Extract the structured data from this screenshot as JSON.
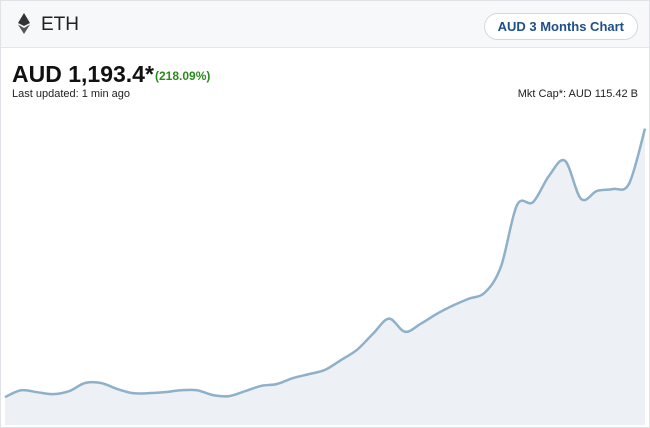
{
  "header": {
    "symbol": "ETH",
    "button": "AUD 3 Months Chart"
  },
  "price": {
    "value": "AUD 1,193.4*",
    "change": "(218.09%)",
    "updated": "Last updated: 1 min ago",
    "market_cap": "Mkt Cap*: AUD 115.42 B"
  },
  "chart_data": {
    "type": "area",
    "color": "#8eb1c9",
    "fill": "#edf1f5",
    "ylim": [
      290,
      1265
    ],
    "values": [
      375,
      396,
      390,
      384,
      393,
      418,
      418,
      400,
      387,
      387,
      390,
      396,
      396,
      381,
      378,
      393,
      409,
      415,
      433,
      445,
      458,
      488,
      519,
      568,
      614,
      574,
      599,
      629,
      654,
      675,
      694,
      773,
      960,
      969,
      1049,
      1095,
      979,
      1003,
      1009,
      1025,
      1193
    ]
  }
}
